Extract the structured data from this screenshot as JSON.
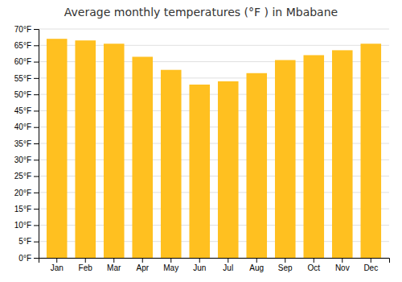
{
  "chart_data": {
    "type": "bar",
    "title": "Average monthly temperatures (°F ) in Mbabane",
    "categories": [
      "Jan",
      "Feb",
      "Mar",
      "Apr",
      "May",
      "Jun",
      "Jul",
      "Aug",
      "Sep",
      "Oct",
      "Nov",
      "Dec"
    ],
    "values": [
      67,
      66.5,
      65.5,
      61.5,
      57.5,
      53,
      54,
      56.5,
      60.5,
      62,
      63.5,
      65.5
    ],
    "color": "#FFC020",
    "ylim": [
      0,
      70
    ],
    "yticks": [
      {
        "value": 0,
        "label": "0°F"
      },
      {
        "value": 5,
        "label": "5°F"
      },
      {
        "value": 10,
        "label": "10°F"
      },
      {
        "value": 15,
        "label": "15°F"
      },
      {
        "value": 20,
        "label": "20°F"
      },
      {
        "value": 25,
        "label": "25°F"
      },
      {
        "value": 30,
        "label": "30°F"
      },
      {
        "value": 35,
        "label": "35°F"
      },
      {
        "value": 40,
        "label": "40°F"
      },
      {
        "value": 45,
        "label": "45°F"
      },
      {
        "value": 50,
        "label": "50°F"
      },
      {
        "value": 55,
        "label": "55°F"
      },
      {
        "value": 60,
        "label": "60°F"
      },
      {
        "value": 65,
        "label": "65°F"
      },
      {
        "value": 70,
        "label": "70°F"
      }
    ],
    "grid": true
  }
}
